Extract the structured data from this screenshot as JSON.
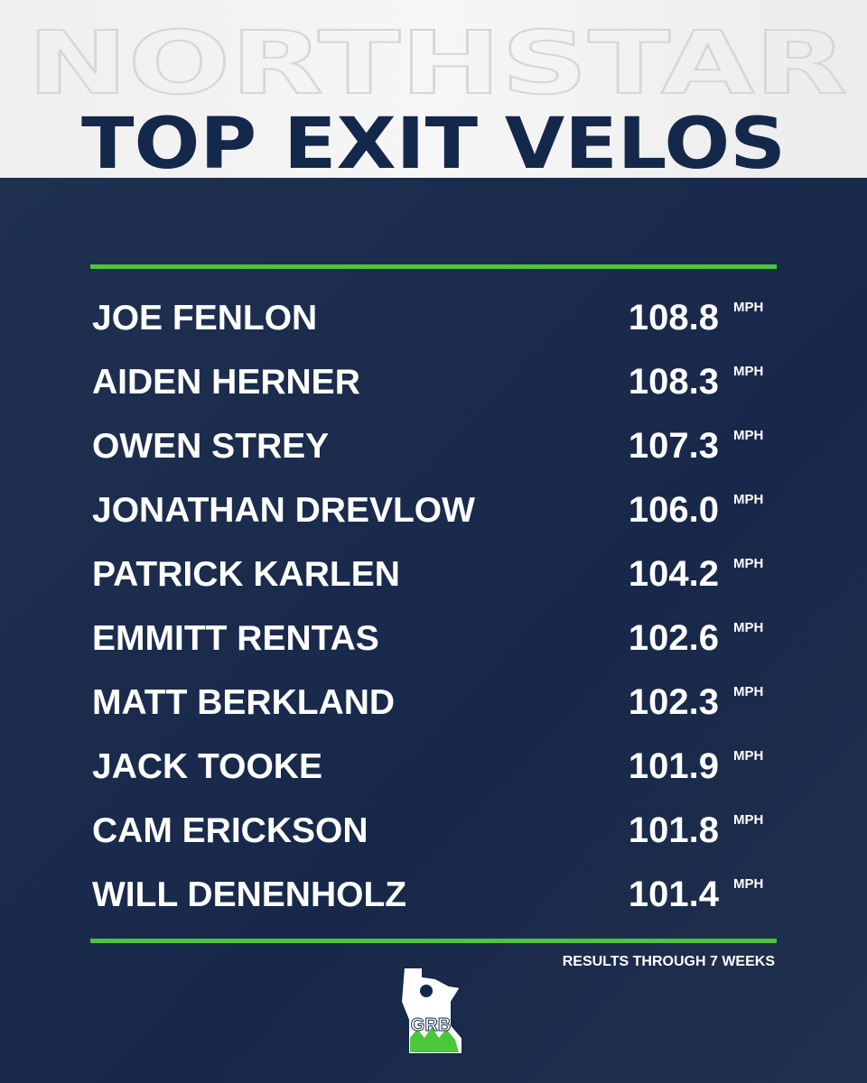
{
  "header": {
    "watermark": "NORTHSTAR",
    "title": "TOP EXIT VELOS"
  },
  "table": {
    "rows": [
      {
        "name": "JOE FENLON",
        "value": "108.8",
        "unit": "MPH"
      },
      {
        "name": "AIDEN HERNER",
        "value": "108.3",
        "unit": "MPH"
      },
      {
        "name": "OWEN STREY",
        "value": "107.3",
        "unit": "MPH"
      },
      {
        "name": "JONATHAN DREVLOW",
        "value": "106.0",
        "unit": "MPH"
      },
      {
        "name": "PATRICK KARLEN",
        "value": "104.2",
        "unit": "MPH"
      },
      {
        "name": "EMMITT RENTAS",
        "value": "102.6",
        "unit": "MPH"
      },
      {
        "name": "MATT BERKLAND",
        "value": "102.3",
        "unit": "MPH"
      },
      {
        "name": "JACK TOOKE",
        "value": "101.9",
        "unit": "MPH"
      },
      {
        "name": "CAM ERICKSON",
        "value": "101.8",
        "unit": "MPH"
      },
      {
        "name": "WILL DENENHOLZ",
        "value": "101.4",
        "unit": "MPH"
      }
    ]
  },
  "footer": {
    "note": "RESULTS THROUGH 7 WEEKS",
    "logo": "GRB"
  }
}
